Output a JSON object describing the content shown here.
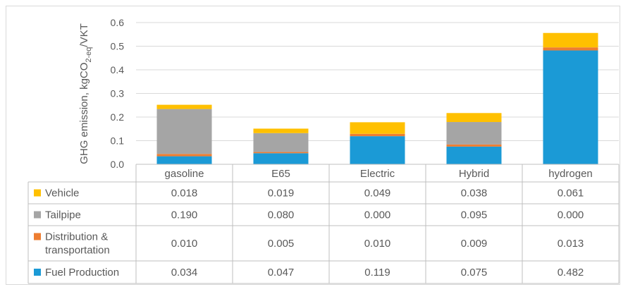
{
  "chart_data": {
    "type": "bar",
    "stacked": true,
    "categories": [
      "gasoline",
      "E65",
      "Electric",
      "Hybrid",
      "hydrogen"
    ],
    "ylabel_main": "GHG emission, kgCO",
    "ylabel_sub": "2-eq",
    "ylabel_tail": "/VKT",
    "ylim": [
      0,
      0.6
    ],
    "yticks": [
      "0.0",
      "0.1",
      "0.2",
      "0.3",
      "0.4",
      "0.5",
      "0.6"
    ],
    "ytick_values": [
      0,
      0.1,
      0.2,
      0.3,
      0.4,
      0.5,
      0.6
    ],
    "grid": true,
    "legend_placement": "data-table",
    "series": [
      {
        "name": "Fuel Production",
        "color": "#1b9ad6",
        "values": [
          0.034,
          0.047,
          0.119,
          0.075,
          0.482
        ],
        "labels": [
          "0.034",
          "0.047",
          "0.119",
          "0.075",
          "0.482"
        ]
      },
      {
        "name": "Distribution & transportation",
        "name_lines": [
          "Distribution &",
          "transportation"
        ],
        "color": "#ed7d31",
        "values": [
          0.01,
          0.005,
          0.01,
          0.009,
          0.013
        ],
        "labels": [
          "0.010",
          "0.005",
          "0.010",
          "0.009",
          "0.013"
        ]
      },
      {
        "name": "Tailpipe",
        "color": "#a5a5a5",
        "values": [
          0.19,
          0.08,
          0.0,
          0.095,
          0.0
        ],
        "labels": [
          "0.190",
          "0.080",
          "0.000",
          "0.095",
          "0.000"
        ]
      },
      {
        "name": "Vehicle",
        "color": "#ffc000",
        "values": [
          0.018,
          0.019,
          0.049,
          0.038,
          0.061
        ],
        "labels": [
          "0.018",
          "0.019",
          "0.049",
          "0.038",
          "0.061"
        ]
      }
    ],
    "table_order": [
      3,
      2,
      1,
      0
    ]
  }
}
